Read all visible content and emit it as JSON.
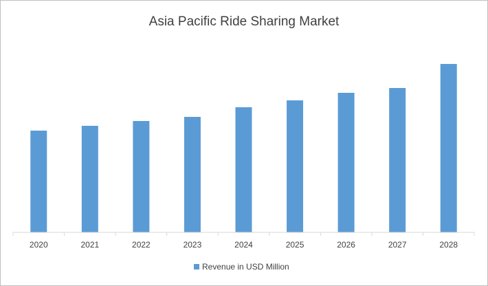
{
  "chart_data": {
    "type": "bar",
    "title": "Asia Pacific Ride Sharing Market",
    "categories": [
      "2020",
      "2021",
      "2022",
      "2023",
      "2024",
      "2025",
      "2026",
      "2027",
      "2028"
    ],
    "series": [
      {
        "name": "Revenue in USD Million",
        "color": "#5b9bd5",
        "values": [
          148,
          155,
          162,
          168,
          182,
          192,
          203,
          210,
          245
        ]
      }
    ],
    "ylim": [
      0,
      260
    ],
    "legend": "bottom"
  }
}
